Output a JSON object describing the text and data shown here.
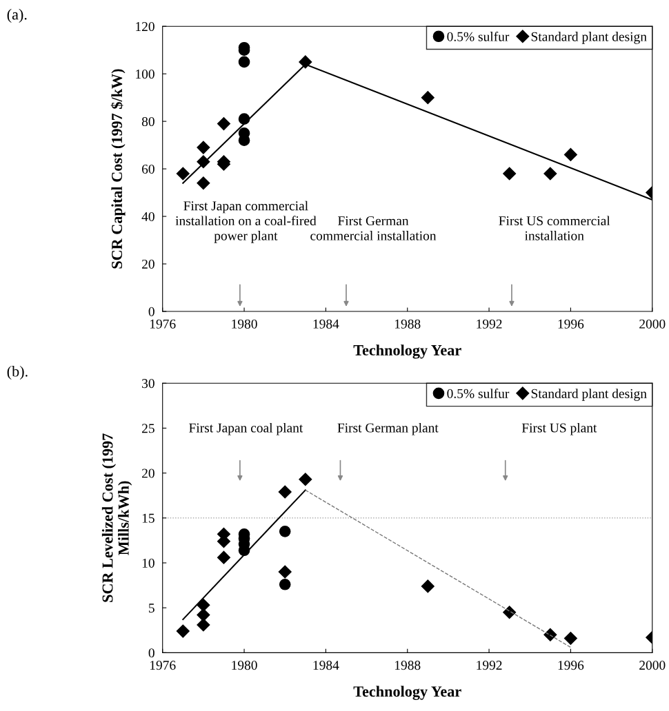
{
  "chart_data": [
    {
      "type": "scatter",
      "xlabel": "Technology Year",
      "ylabel": "SCR Capital Cost (1997 $/kW)",
      "xlim": [
        1976,
        2000
      ],
      "xticks": [
        1976,
        1980,
        1984,
        1988,
        1992,
        1996,
        2000
      ],
      "ylim": [
        0,
        120
      ],
      "yticks": [
        0,
        20,
        40,
        60,
        80,
        100,
        120
      ],
      "grid": false,
      "legend": "top right",
      "series": [
        {
          "name": "0.5% sulfur",
          "color": "#000000",
          "marker": "circle",
          "x": [
            1980,
            1980,
            1980,
            1980,
            1980,
            1980
          ],
          "values": [
            111,
            110,
            105,
            81,
            75,
            72
          ]
        },
        {
          "name": "Standard plant design",
          "color": "#000000",
          "marker": "diamond",
          "x": [
            1977,
            1978,
            1978,
            1978,
            1979,
            1979,
            1979,
            1983,
            1989,
            1993,
            1995,
            1996,
            2000
          ],
          "values": [
            58,
            69,
            63,
            54,
            79,
            63,
            62,
            105,
            90,
            58,
            58,
            66,
            50
          ]
        },
        {
          "type": "line",
          "color": "#000000",
          "line_style": "solid",
          "x": [
            1977,
            1983
          ],
          "values": [
            54,
            104
          ]
        },
        {
          "type": "line",
          "color": "#000000",
          "line_style": "solid",
          "x": [
            1983,
            2000
          ],
          "values": [
            104,
            47
          ]
        }
      ],
      "annotations": [
        "(a).",
        "First Japan commercial\ninstallation on a coal-fired\npower plant",
        "First German\ncommercial installation",
        "First US commercial\ninstallation"
      ]
    },
    {
      "type": "scatter",
      "xlabel": "Technology Year",
      "ylabel": "SCR Levelized Cost (1997\nMills/kWh)",
      "xlim": [
        1976,
        2000
      ],
      "xticks": [
        1976,
        1980,
        1984,
        1988,
        1992,
        1996,
        2000
      ],
      "ylim": [
        0,
        30
      ],
      "yticks": [
        0,
        5,
        10,
        15,
        20,
        25,
        30
      ],
      "grid": false,
      "legend": "top right",
      "ref_lines": [
        {
          "axis": "y",
          "value": 15,
          "color": "#aaaaaa",
          "line_style": "dotted"
        }
      ],
      "series": [
        {
          "name": "0.5% sulfur",
          "color": "#000000",
          "marker": "circle",
          "x": [
            1980,
            1980,
            1980,
            1980,
            1982,
            1982
          ],
          "values": [
            13.2,
            12.7,
            12.1,
            11.4,
            13.5,
            7.6
          ]
        },
        {
          "name": "Standard plant design",
          "color": "#000000",
          "marker": "diamond",
          "x": [
            1977,
            1978,
            1978,
            1978,
            1979,
            1979,
            1979,
            1982,
            1982,
            1983,
            1989,
            1993,
            1995,
            1996,
            2000
          ],
          "values": [
            2.4,
            5.3,
            4.2,
            3.1,
            13.2,
            12.4,
            10.6,
            17.9,
            9.0,
            19.3,
            7.4,
            4.5,
            2.0,
            1.6,
            1.7
          ]
        },
        {
          "type": "line",
          "color": "#000000",
          "line_style": "solid",
          "x": [
            1977,
            1983
          ],
          "values": [
            3.7,
            18.1
          ]
        },
        {
          "type": "line",
          "color": "#777777",
          "line_style": "dashed",
          "x": [
            1983,
            1996
          ],
          "values": [
            18.1,
            0.6
          ]
        }
      ],
      "annotations": [
        "(b).",
        "First Japan coal plant",
        "First German plant",
        "First US plant"
      ]
    }
  ]
}
